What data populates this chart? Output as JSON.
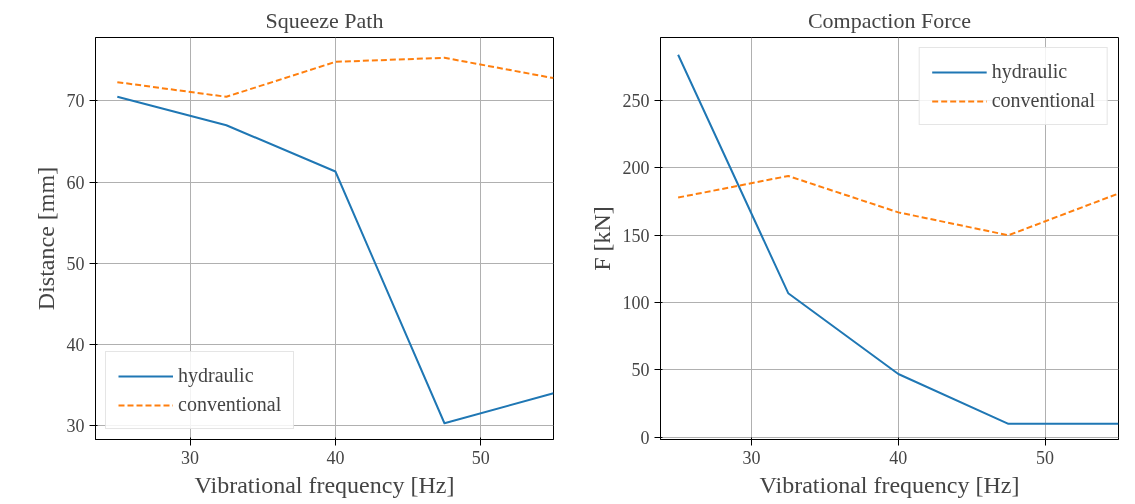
{
  "chart_data": [
    {
      "type": "line",
      "title": "Squeeze Path",
      "xlabel": "Vibrational frequency [Hz]",
      "ylabel": "Distance [mm]",
      "x": [
        25,
        32.5,
        40,
        47.5,
        55
      ],
      "series": [
        {
          "name": "hydraulic",
          "color": "#1f77b4",
          "values": [
            70.5,
            67,
            61.3,
            30.3,
            34
          ],
          "line_style": "solid"
        },
        {
          "name": "conventional",
          "color": "#ff7f0e",
          "values": [
            72.3,
            70.5,
            74.8,
            75.3,
            72.8
          ],
          "line_style": "dashed"
        }
      ],
      "xlim": [
        23.5,
        55
      ],
      "ylim": [
        28.3,
        77.8
      ],
      "xticks": [
        30,
        40,
        50
      ],
      "yticks": [
        30,
        40,
        50,
        60,
        70
      ],
      "grid": true,
      "legend": "bottom left"
    },
    {
      "type": "line",
      "title": "Compaction Force",
      "xlabel": "Vibrational frequency [Hz]",
      "ylabel": "F [kN]",
      "x": [
        25,
        32.5,
        40,
        47.5,
        55
      ],
      "series": [
        {
          "name": "hydraulic",
          "color": "#1f77b4",
          "values": [
            284,
            107,
            47,
            10,
            10
          ],
          "line_style": "solid"
        },
        {
          "name": "conventional",
          "color": "#ff7f0e",
          "values": [
            178,
            194,
            167,
            150,
            181
          ],
          "line_style": "dashed"
        }
      ],
      "xlim": [
        23.8,
        55
      ],
      "ylim": [
        -1.6,
        296.8
      ],
      "xticks": [
        30,
        40,
        50
      ],
      "yticks": [
        0,
        50,
        100,
        150,
        200,
        250
      ],
      "grid": true,
      "legend": "top right"
    }
  ]
}
